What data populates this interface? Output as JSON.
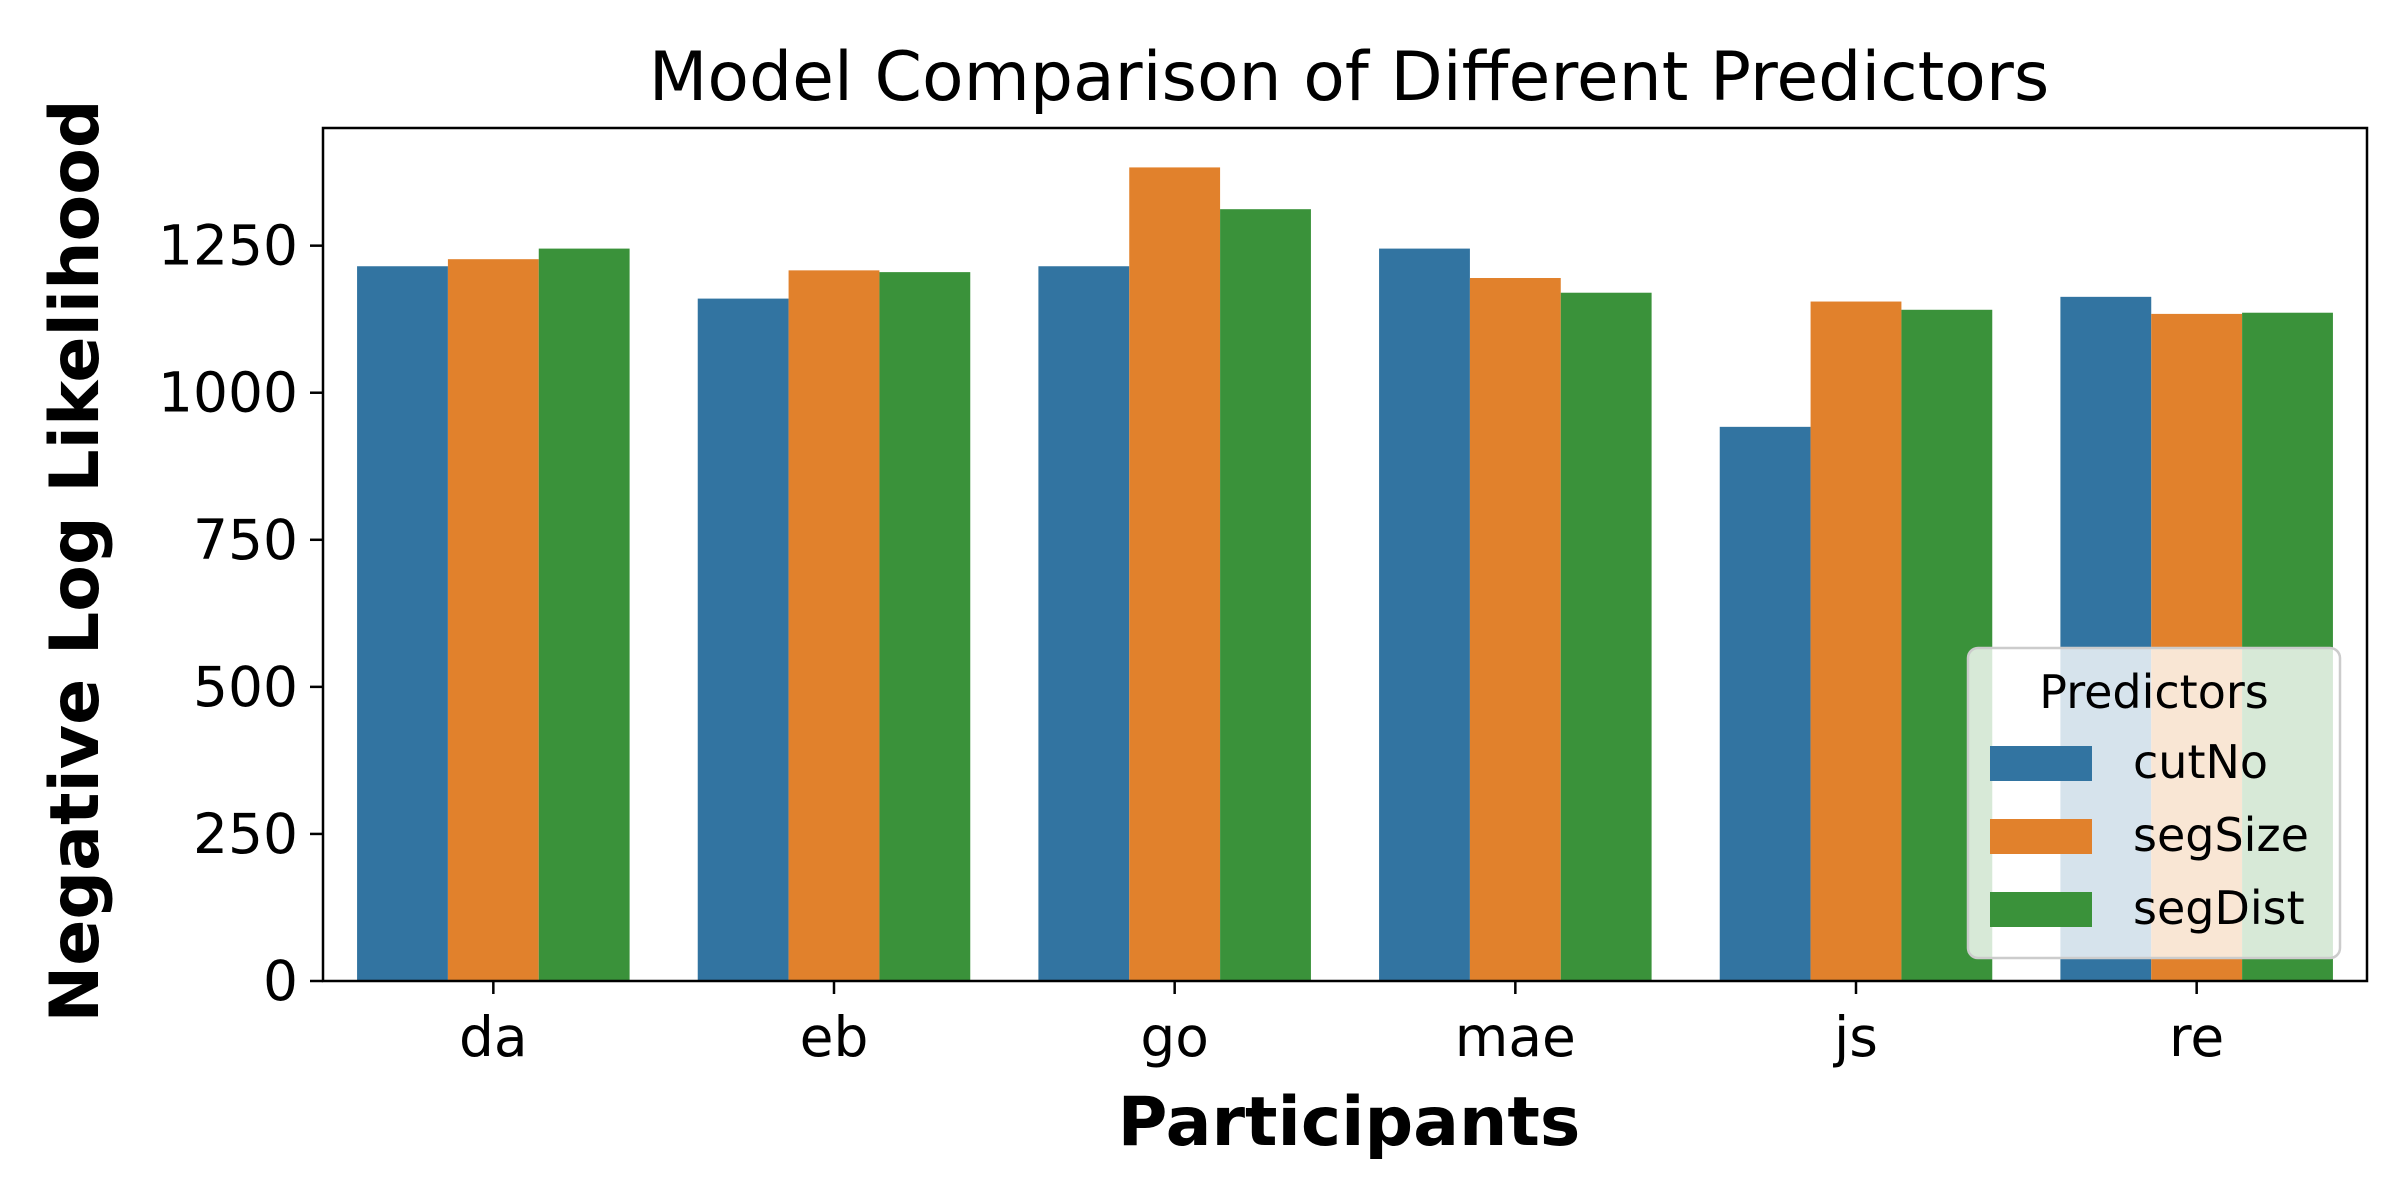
{
  "chart_data": {
    "type": "bar",
    "title": "Model Comparison of Different Predictors",
    "xlabel": "Participants",
    "ylabel": "Negative Log Likelihood",
    "categories": [
      "da",
      "eb",
      "go",
      "mae",
      "js",
      "re"
    ],
    "series": [
      {
        "name": "cutNo",
        "color": "#3274a1",
        "values": [
          1215,
          1160,
          1215,
          1245,
          942,
          1163
        ]
      },
      {
        "name": "segSize",
        "color": "#e1812c",
        "values": [
          1227,
          1208,
          1383,
          1195,
          1155,
          1134
        ]
      },
      {
        "name": "segDist",
        "color": "#3a923a",
        "values": [
          1245,
          1205,
          1312,
          1170,
          1141,
          1136
        ]
      }
    ],
    "ylim": [
      0,
      1450
    ],
    "yticks": [
      0,
      250,
      500,
      750,
      1000,
      1250
    ],
    "grid": false,
    "legend": {
      "title": "Predictors",
      "position": "lower-right"
    }
  }
}
